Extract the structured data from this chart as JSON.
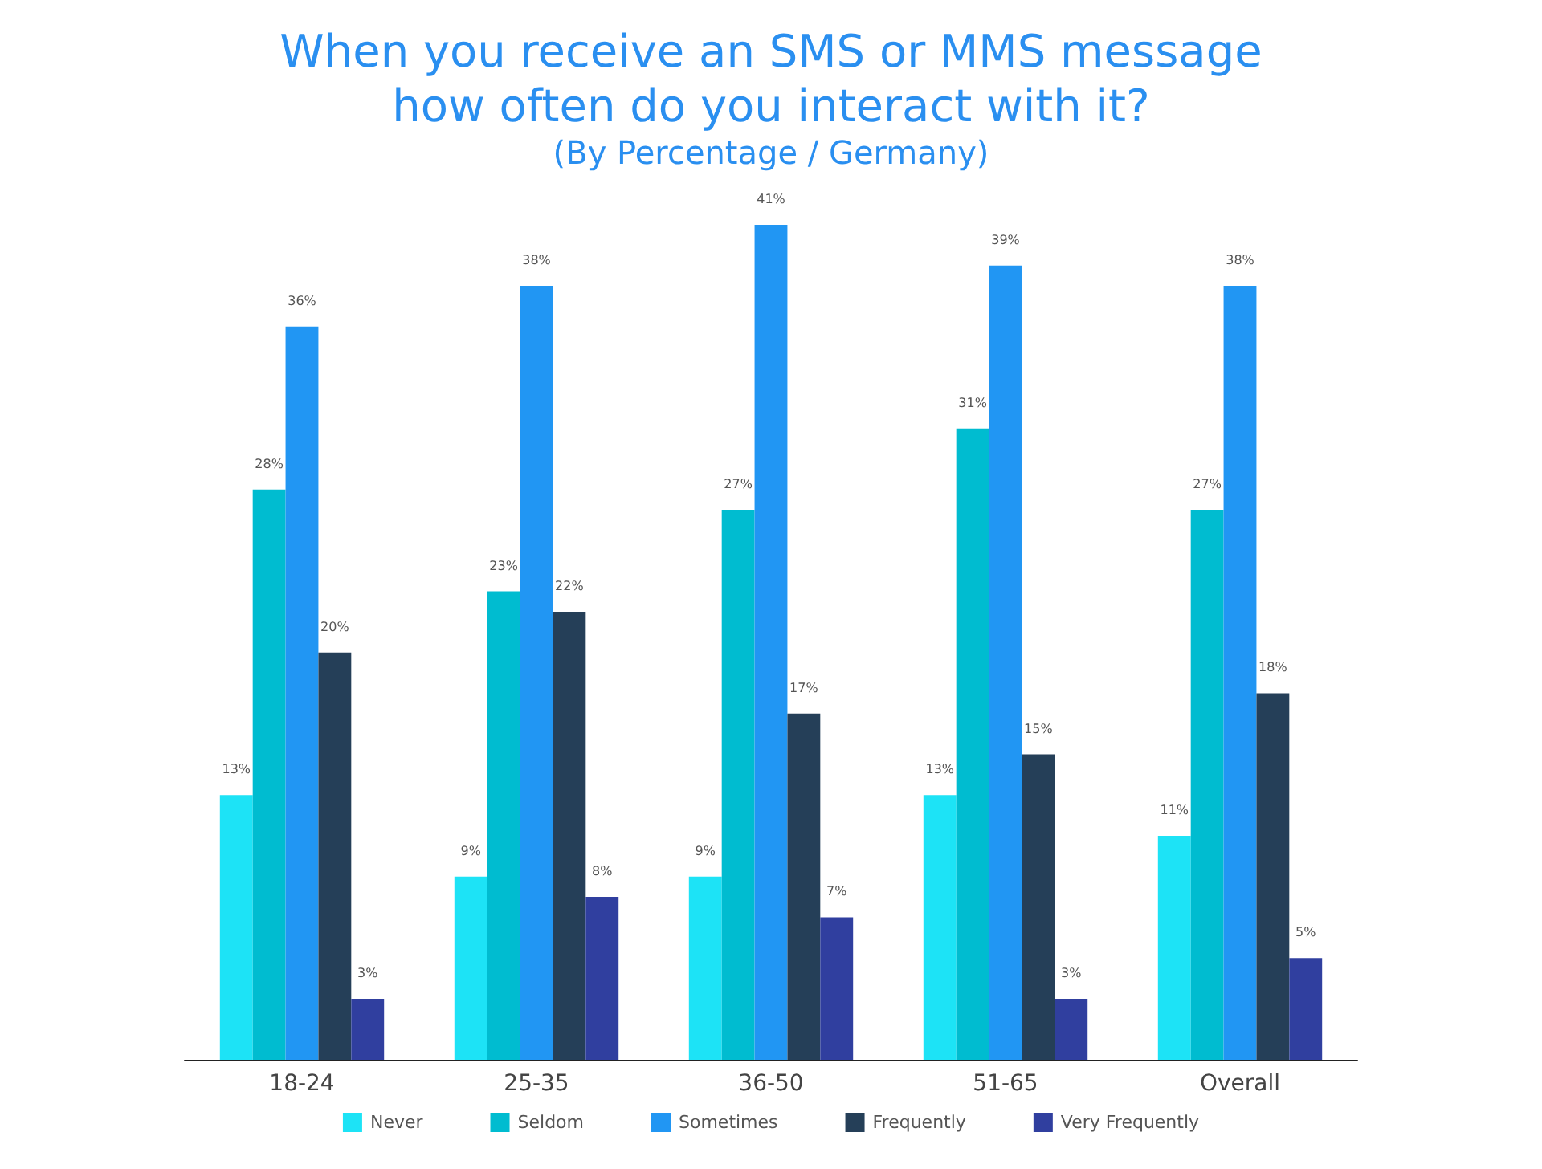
{
  "chart_data": {
    "type": "bar",
    "title": "When you receive an SMS or MMS message\nhow often do you interact with it?",
    "subtitle": "(By Percentage / Germany)",
    "categories": [
      "18-24",
      "25-35",
      "36-50",
      "51-65",
      "Overall"
    ],
    "legend": "bottom",
    "grid": false,
    "series": [
      {
        "name": "Never",
        "color": "#1de3f6",
        "values": [
          13,
          9,
          9,
          13,
          11
        ],
        "value_labels": [
          "13%",
          "9%",
          "9%",
          "13%",
          "11%"
        ]
      },
      {
        "name": "Seldom",
        "color": "#00bcd0",
        "values": [
          28,
          23,
          27,
          31,
          27
        ],
        "value_labels": [
          "28%",
          "23%",
          "27%",
          "31%",
          "27%"
        ]
      },
      {
        "name": "Sometimes",
        "color": "#2196f3",
        "values": [
          36,
          38,
          41,
          39,
          38
        ],
        "value_labels": [
          "36%",
          "38%",
          "41%",
          "39%",
          "38%"
        ]
      },
      {
        "name": "Frequently",
        "color": "#253f58",
        "values": [
          20,
          22,
          17,
          15,
          18
        ],
        "value_labels": [
          "20%",
          "22%",
          "17%",
          "15%",
          "18%"
        ]
      },
      {
        "name": "Very Frequently",
        "color": "#303f9f",
        "values": [
          3,
          8,
          7,
          3,
          5
        ],
        "value_labels": [
          "3%",
          "8%",
          "7%",
          "3%",
          "5%"
        ]
      }
    ]
  }
}
